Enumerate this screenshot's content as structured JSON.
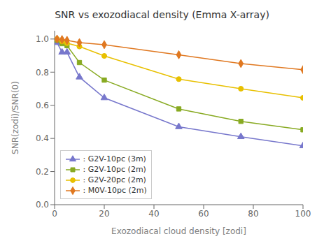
{
  "chart_data": {
    "type": "line",
    "title": "SNR vs exozodiacal density (Emma X-array)",
    "x_label": "Exozodiacal cloud density [zodi]",
    "y_label": "SNR(zodi)/SNR(0)",
    "xlim": [
      0,
      100
    ],
    "ylim": [
      0.0,
      1.05
    ],
    "xticks": [
      0,
      20,
      40,
      60,
      80,
      100
    ],
    "yticks": [
      {
        "value": 0,
        "label": "0.0"
      },
      0.2,
      0.4,
      0.6,
      0.8,
      {
        "value": 1,
        "label": "1.0"
      }
    ],
    "grid": false,
    "legend": "lower left",
    "series": [
      {
        "name": " : G2V-10pc (3m)",
        "color": "#7777cc",
        "marker": "triangle",
        "x": [
          1,
          3,
          5,
          10,
          20,
          50,
          75,
          100
        ],
        "values": [
          0.978,
          0.92,
          0.92,
          0.77,
          0.645,
          0.47,
          0.41,
          0.355
        ]
      },
      {
        "name": " : G2V-10pc (2m)",
        "color": "#88aa22",
        "marker": "square",
        "x": [
          1,
          3,
          5,
          10,
          20,
          50,
          75,
          100
        ],
        "values": [
          0.993,
          0.972,
          0.96,
          0.858,
          0.752,
          0.578,
          0.503,
          0.452
        ]
      },
      {
        "name": " : G2V-20pc (2m)",
        "color": "#e8c000",
        "marker": "circle",
        "x": [
          1,
          3,
          5,
          10,
          20,
          50,
          75,
          100
        ],
        "values": [
          1.0,
          0.986,
          0.975,
          0.955,
          0.898,
          0.758,
          0.7,
          0.645
        ]
      },
      {
        "name": " : M0V-10pc (2m)",
        "color": "#e07820",
        "marker": "diamond",
        "x": [
          1,
          3,
          5,
          10,
          20,
          50,
          75,
          100
        ],
        "values": [
          1.0,
          0.997,
          0.992,
          0.978,
          0.966,
          0.905,
          0.852,
          0.815
        ]
      }
    ]
  }
}
